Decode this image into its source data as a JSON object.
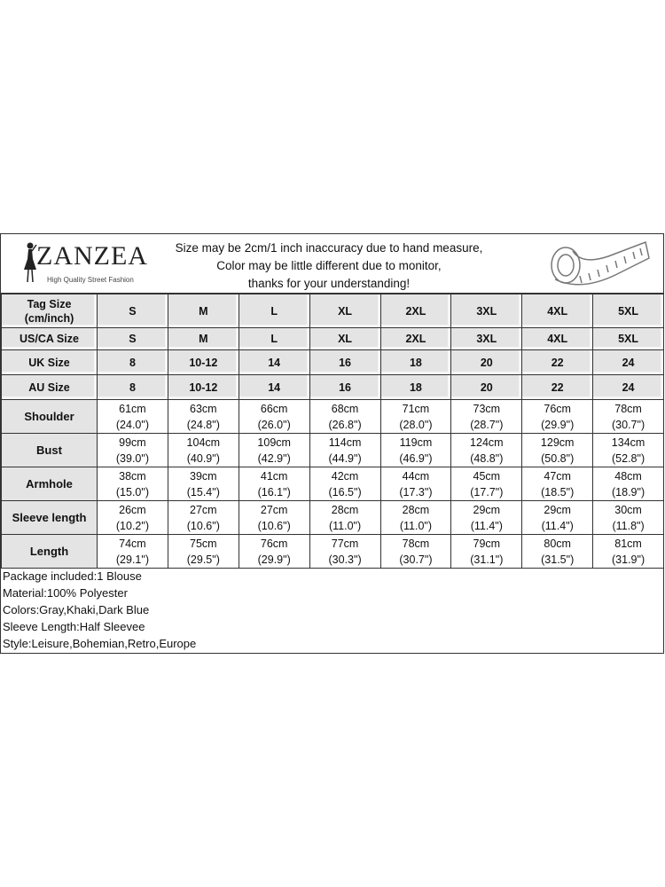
{
  "logo": {
    "brand": "ZANZEA",
    "tagline": "High Quality Street Fashion"
  },
  "notice": [
    "Size may be 2cm/1 inch inaccuracy due to hand measure,",
    "Color may be little different due to monitor,",
    "thanks for your understanding!"
  ],
  "table": {
    "size_rows": [
      {
        "label": "Tag Size\n(cm/inch)",
        "values": [
          "S",
          "M",
          "L",
          "XL",
          "2XL",
          "3XL",
          "4XL",
          "5XL"
        ]
      },
      {
        "label": "US/CA Size",
        "values": [
          "S",
          "M",
          "L",
          "XL",
          "2XL",
          "3XL",
          "4XL",
          "5XL"
        ]
      },
      {
        "label": "UK Size",
        "values": [
          "8",
          "10-12",
          "14",
          "16",
          "18",
          "20",
          "22",
          "24"
        ]
      },
      {
        "label": "AU Size",
        "values": [
          "8",
          "10-12",
          "14",
          "16",
          "18",
          "20",
          "22",
          "24"
        ]
      }
    ],
    "measure_rows": [
      {
        "label": "Shoulder",
        "cm": [
          "61cm",
          "63cm",
          "66cm",
          "68cm",
          "71cm",
          "73cm",
          "76cm",
          "78cm"
        ],
        "inch": [
          "(24.0\")",
          "(24.8\")",
          "(26.0\")",
          "(26.8\")",
          "(28.0\")",
          "(28.7\")",
          "(29.9\")",
          "(30.7\")"
        ]
      },
      {
        "label": "Bust",
        "cm": [
          "99cm",
          "104cm",
          "109cm",
          "114cm",
          "119cm",
          "124cm",
          "129cm",
          "134cm"
        ],
        "inch": [
          "(39.0\")",
          "(40.9\")",
          "(42.9\")",
          "(44.9\")",
          "(46.9\")",
          "(48.8\")",
          "(50.8\")",
          "(52.8\")"
        ]
      },
      {
        "label": "Armhole",
        "cm": [
          "38cm",
          "39cm",
          "41cm",
          "42cm",
          "44cm",
          "45cm",
          "47cm",
          "48cm"
        ],
        "inch": [
          "(15.0\")",
          "(15.4\")",
          "(16.1\")",
          "(16.5\")",
          "(17.3\")",
          "(17.7\")",
          "(18.5\")",
          "(18.9\")"
        ]
      },
      {
        "label": "Sleeve length",
        "cm": [
          "26cm",
          "27cm",
          "27cm",
          "28cm",
          "28cm",
          "29cm",
          "29cm",
          "30cm"
        ],
        "inch": [
          "(10.2\")",
          "(10.6\")",
          "(10.6\")",
          "(11.0\")",
          "(11.0\")",
          "(11.4\")",
          "(11.4\")",
          "(11.8\")"
        ]
      },
      {
        "label": "Length",
        "cm": [
          "74cm",
          "75cm",
          "76cm",
          "77cm",
          "78cm",
          "79cm",
          "80cm",
          "81cm"
        ],
        "inch": [
          "(29.1\")",
          "(29.5\")",
          "(29.9\")",
          "(30.3\")",
          "(30.7\")",
          "(31.1\")",
          "(31.5\")",
          "(31.9\")"
        ]
      }
    ]
  },
  "notes": [
    "Package included:1 Blouse",
    "Material:100% Polyester",
    "Colors:Gray,Khaki,Dark Blue",
    "Sleeve Length:Half Sleevee",
    "Style:Leisure,Bohemian,Retro,Europe"
  ]
}
